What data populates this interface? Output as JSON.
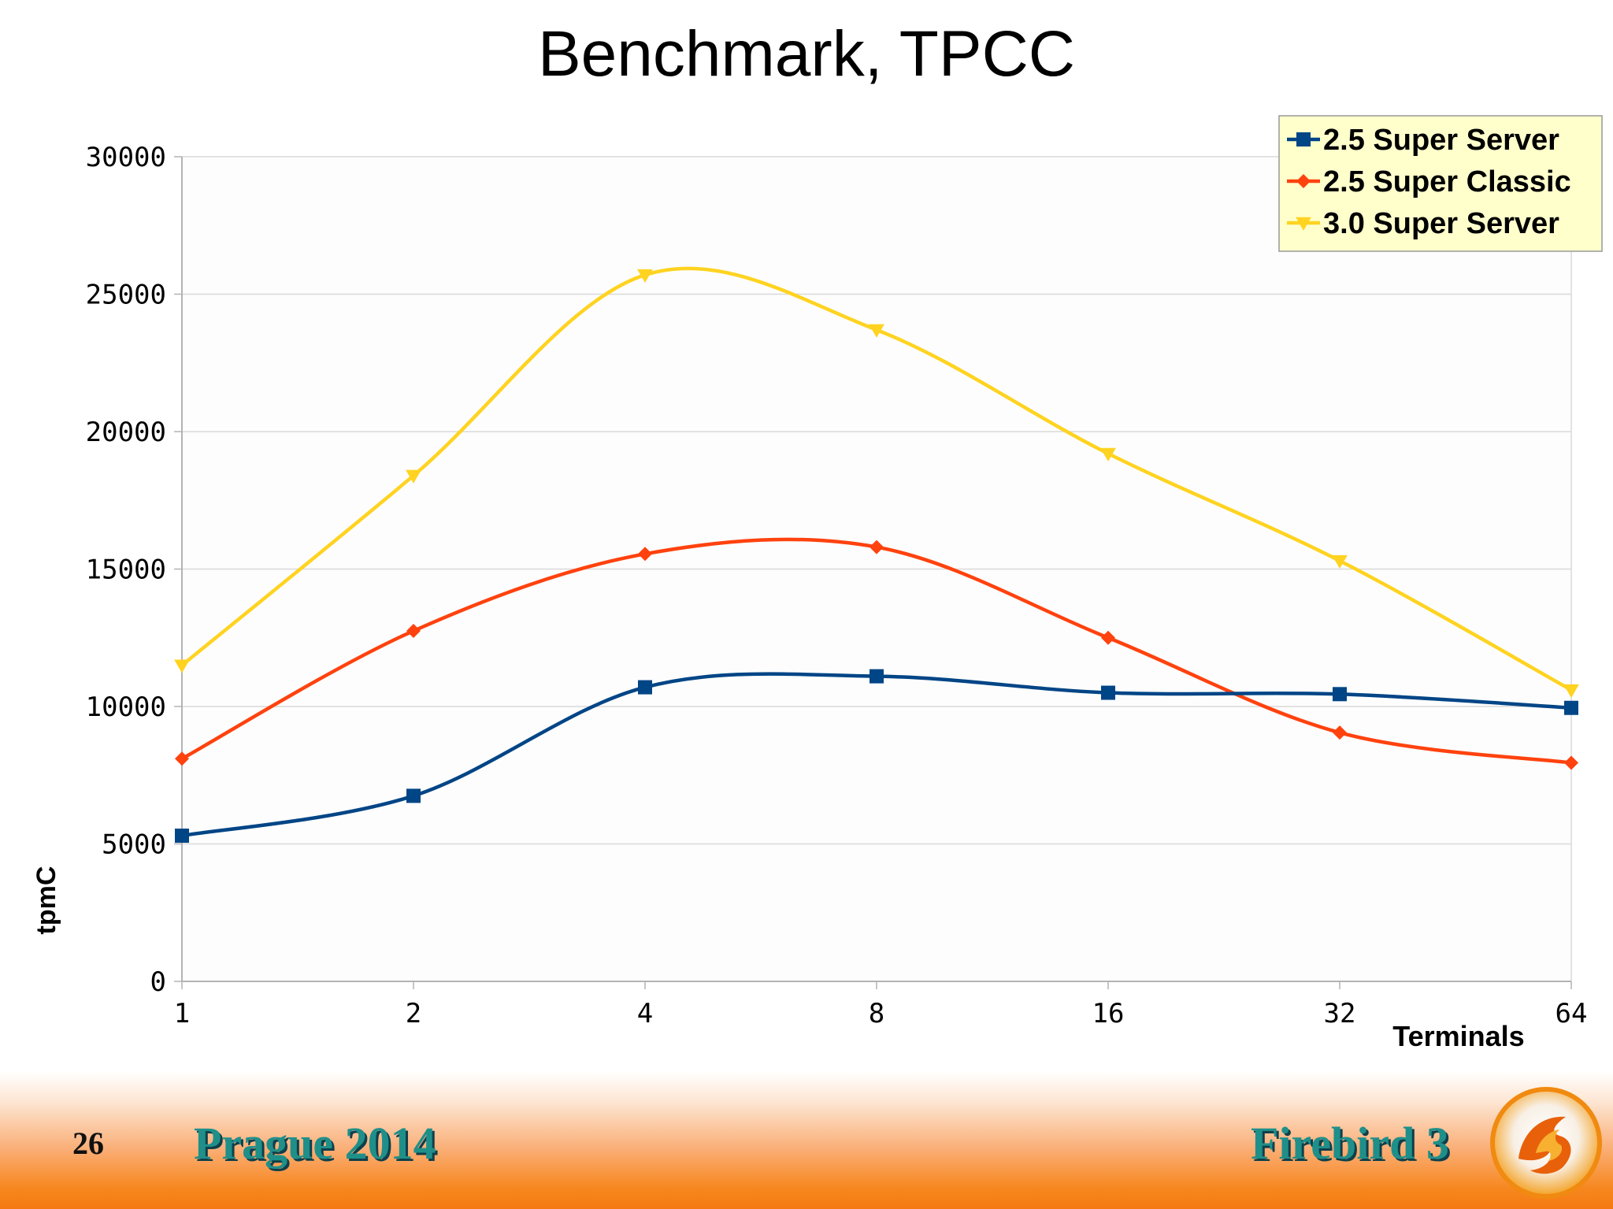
{
  "slide": {
    "title": "Benchmark, TPCC",
    "page_number": "26",
    "footer_left": "Prague 2014",
    "footer_right": "Firebird 3"
  },
  "chart_data": {
    "type": "line",
    "title": "",
    "xlabel": "Terminals",
    "ylabel": "tpmC",
    "categories": [
      "1",
      "2",
      "4",
      "8",
      "16",
      "32",
      "64"
    ],
    "ylim": [
      0,
      30000
    ],
    "yticks": [
      "0",
      "5000",
      "10000",
      "15000",
      "20000",
      "25000",
      "30000"
    ],
    "grid": true,
    "legend_position": "top-right",
    "series": [
      {
        "name": "2.5 Super Server",
        "color": "#004586",
        "marker": "square",
        "values": [
          5300,
          6750,
          10700,
          11100,
          10500,
          10450,
          9950
        ]
      },
      {
        "name": "2.5 Super Classic",
        "color": "#ff420e",
        "marker": "diamond",
        "values": [
          8100,
          12750,
          15550,
          15800,
          12500,
          9050,
          7950
        ]
      },
      {
        "name": "3.0 Super Server",
        "color": "#ffd320",
        "marker": "triangle-down",
        "values": [
          11500,
          18400,
          25700,
          23700,
          19200,
          15300,
          10600
        ]
      }
    ]
  }
}
